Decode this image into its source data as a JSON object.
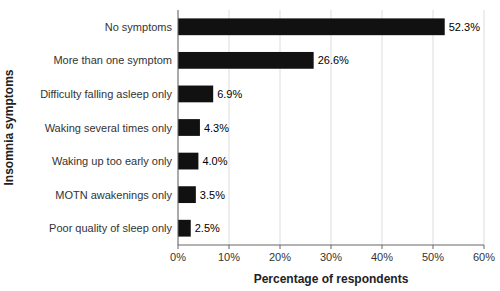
{
  "chart_data": {
    "type": "bar",
    "orientation": "horizontal",
    "categories": [
      "Poor quality of sleep only",
      "MOTN awakenings only",
      "Waking up too early only",
      "Waking several times only",
      "Difficulty falling asleep only",
      "More than one symptom",
      "No symptoms"
    ],
    "values": [
      2.5,
      3.5,
      4.0,
      4.3,
      6.9,
      26.6,
      52.3
    ],
    "value_labels": [
      "2.5%",
      "3.5%",
      "4.0%",
      "4.3%",
      "6.9%",
      "26.6%",
      "52.3%"
    ],
    "data_labels": true,
    "color": "#111111",
    "xlim": [
      0,
      60
    ],
    "xticks": [
      {
        "value": 0,
        "label": "0%"
      },
      {
        "value": 10,
        "label": "10%"
      },
      {
        "value": 20,
        "label": "20%"
      },
      {
        "value": 30,
        "label": "30%"
      },
      {
        "value": 40,
        "label": "40%"
      },
      {
        "value": 50,
        "label": "50%"
      },
      {
        "value": 60,
        "label": "60%"
      }
    ],
    "xlabel": "Percentage of respondents",
    "ylabel": "Insomnia symptoms",
    "grid": true
  }
}
